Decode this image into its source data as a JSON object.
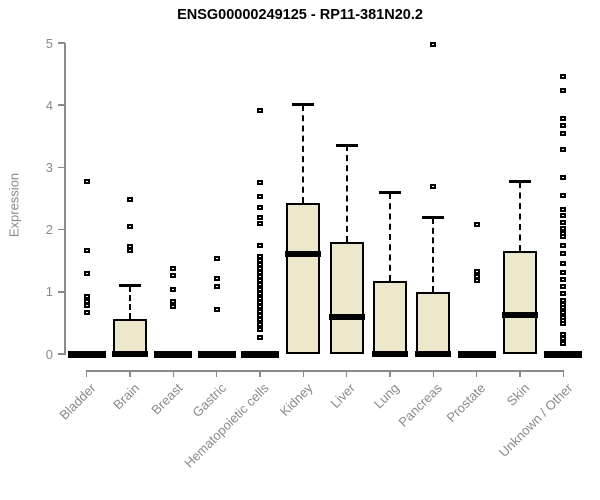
{
  "chart_data": {
    "type": "boxplot",
    "title": "ENSG00000249125 - RP11-381N20.2",
    "xlabel": "",
    "ylabel": "Expression",
    "ylim": [
      0,
      5
    ],
    "yticks": [
      0,
      1,
      2,
      3,
      4,
      5
    ],
    "grid": false,
    "legend": "none",
    "categories": [
      "Bladder",
      "Brain",
      "Breast",
      "Gastric",
      "Hematopoietic cells",
      "Kidney",
      "Liver",
      "Lung",
      "Pancreas",
      "Prostate",
      "Skin",
      "Unknown / Other"
    ],
    "boxes": [
      {
        "category": "Bladder",
        "whisker_low": 0,
        "q1": 0,
        "median": 0,
        "q3": 0,
        "whisker_high": 0,
        "outliers": [
          2.77,
          1.67,
          1.3,
          0.93,
          0.85,
          0.78,
          0.67
        ]
      },
      {
        "category": "Brain",
        "whisker_low": 0,
        "q1": 0,
        "median": 0,
        "q3": 0.57,
        "whisker_high": 1.1,
        "outliers": [
          2.48,
          2.05,
          1.73,
          1.66
        ]
      },
      {
        "category": "Breast",
        "whisker_low": 0,
        "q1": 0,
        "median": 0,
        "q3": 0,
        "whisker_high": 0,
        "outliers": [
          1.38,
          1.27,
          1.04,
          0.84,
          0.76
        ]
      },
      {
        "category": "Gastric",
        "whisker_low": 0,
        "q1": 0,
        "median": 0,
        "q3": 0,
        "whisker_high": 0,
        "outliers": [
          1.54,
          1.22,
          1.08,
          0.71
        ]
      },
      {
        "category": "Hematopoietic cells",
        "whisker_low": 0,
        "q1": 0,
        "median": 0,
        "q3": 0,
        "whisker_high": 0,
        "outliers": [
          3.92,
          2.75,
          2.53,
          2.35,
          2.2,
          2.1,
          1.75,
          1.57,
          1.5,
          1.44,
          1.38,
          1.31,
          1.25,
          1.18,
          1.11,
          1.04,
          0.97,
          0.9,
          0.83,
          0.76,
          0.69,
          0.62,
          0.55,
          0.48,
          0.4,
          0.26
        ]
      },
      {
        "category": "Kidney",
        "whisker_low": 0,
        "q1": 0,
        "median": 1.61,
        "q3": 2.42,
        "whisker_high": 4.01,
        "outliers": []
      },
      {
        "category": "Liver",
        "whisker_low": 0,
        "q1": 0,
        "median": 0.59,
        "q3": 1.8,
        "whisker_high": 3.36,
        "outliers": []
      },
      {
        "category": "Lung",
        "whisker_low": 0,
        "q1": 0,
        "median": 0,
        "q3": 1.17,
        "whisker_high": 2.59,
        "outliers": []
      },
      {
        "category": "Pancreas",
        "whisker_low": 0,
        "q1": 0,
        "median": 0,
        "q3": 0.99,
        "whisker_high": 2.19,
        "outliers": [
          4.98,
          2.69
        ]
      },
      {
        "category": "Prostate",
        "whisker_low": 0,
        "q1": 0,
        "median": 0,
        "q3": 0,
        "whisker_high": 0,
        "outliers": [
          2.08,
          1.32,
          1.25,
          1.18
        ]
      },
      {
        "category": "Skin",
        "whisker_low": 0,
        "q1": 0,
        "median": 0.63,
        "q3": 1.66,
        "whisker_high": 2.77,
        "outliers": []
      },
      {
        "category": "Unknown / Other",
        "whisker_low": 0,
        "q1": 0,
        "median": 0,
        "q3": 0,
        "whisker_high": 0,
        "outliers": [
          4.46,
          4.23,
          3.79,
          3.68,
          3.54,
          3.29,
          2.84,
          2.55,
          2.33,
          2.22,
          2.12,
          2.02,
          1.93,
          1.89,
          1.74,
          1.62,
          1.46,
          1.31,
          1.2,
          1.08,
          0.98,
          0.86,
          0.8,
          0.74,
          0.7,
          0.66,
          0.62,
          0.58,
          0.54,
          0.49,
          0.32,
          0.25,
          0.17
        ]
      }
    ],
    "colors": {
      "box_fill": "#EDE8CC",
      "box_border": "#000000",
      "axis": "#8A8A8A",
      "title_color": "#000000"
    }
  }
}
